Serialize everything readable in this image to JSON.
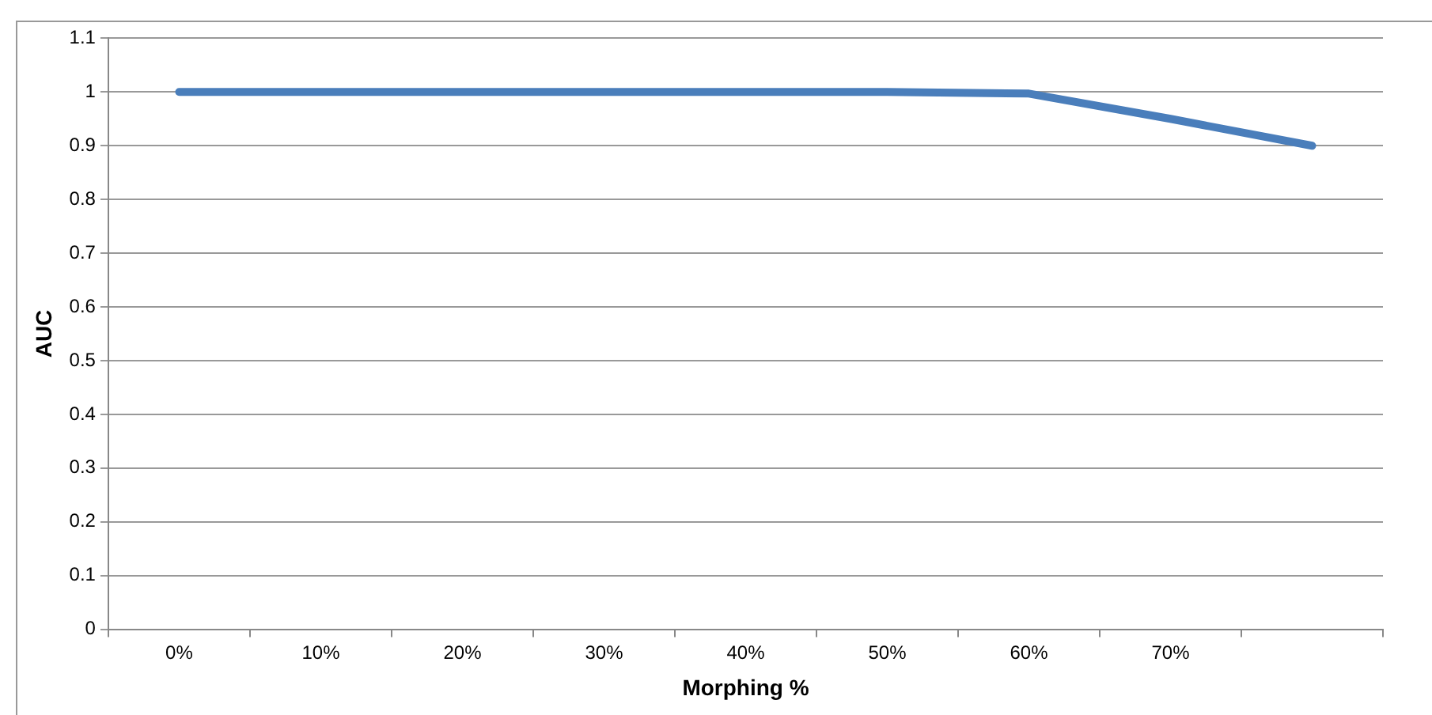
{
  "chart_data": {
    "type": "line",
    "xlabel": "Morphing %",
    "ylabel": "AUC",
    "categories": [
      "0%",
      "10%",
      "20%",
      "30%",
      "40%",
      "50%",
      "60%",
      "70%",
      null
    ],
    "series": [
      {
        "color": "#4a7ebb",
        "values": [
          1,
          1,
          1,
          1,
          1,
          1,
          0.997,
          0.95,
          0.9
        ]
      }
    ],
    "ylim": [
      0,
      1.1
    ],
    "yticks": [
      0,
      0.1,
      0.2,
      0.3,
      0.4,
      0.5,
      0.6,
      0.7,
      0.8,
      0.9,
      1,
      1.1
    ],
    "grid": "y",
    "legend": false,
    "marker": "none",
    "line_style": "solid"
  }
}
